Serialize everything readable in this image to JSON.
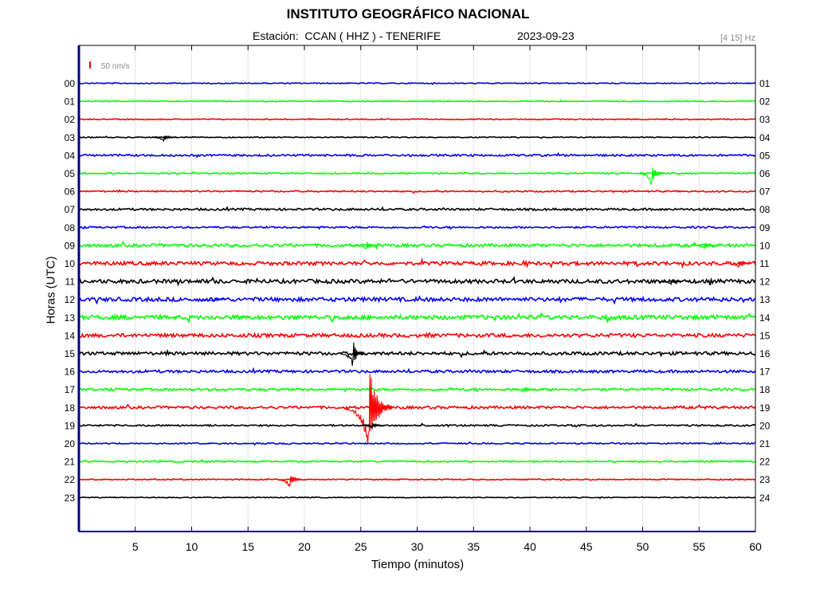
{
  "header": {
    "title": "INSTITUTO GEOGRÁFICO NACIONAL",
    "station_label": "Estación:  CCAN ( HHZ ) - TENERIFE",
    "date": "2023-09-23",
    "filter_band": "[4 15] Hz"
  },
  "chart_data": {
    "type": "line",
    "title": "INSTITUTO GEOGRÁFICO NACIONAL",
    "xlabel": "Tiempo (minutos)",
    "ylabel": "Horas (UTC)",
    "xlim": [
      0,
      60
    ],
    "xticks": [
      5,
      10,
      15,
      20,
      25,
      30,
      35,
      40,
      45,
      50,
      55,
      60
    ],
    "grid": "vertical",
    "scale_bar_label": "50 nm/s",
    "scale_bar_color": "#ff0000",
    "trace_colors": [
      "#0000ff",
      "#00ff00",
      "#ff0000",
      "#000000"
    ],
    "left_hours": [
      "00",
      "01",
      "02",
      "03",
      "04",
      "05",
      "06",
      "07",
      "08",
      "09",
      "10",
      "11",
      "12",
      "13",
      "14",
      "15",
      "16",
      "17",
      "18",
      "19",
      "20",
      "21",
      "22",
      "23"
    ],
    "right_hours": [
      "01",
      "02",
      "03",
      "04",
      "05",
      "06",
      "07",
      "08",
      "09",
      "10",
      "11",
      "12",
      "13",
      "14",
      "15",
      "16",
      "17",
      "18",
      "19",
      "20",
      "21",
      "22",
      "23",
      "24"
    ],
    "noise_level": [
      0.6,
      0.6,
      0.6,
      0.6,
      1.2,
      0.8,
      0.9,
      1.3,
      1.1,
      1.8,
      2.2,
      2.4,
      2.4,
      2.6,
      2.2,
      2.0,
      1.6,
      1.4,
      1.6,
      1.0,
      0.8,
      0.9,
      0.7,
      0.5
    ],
    "events": [
      {
        "hour": "03",
        "minute": 7.5,
        "amplitude": 5
      },
      {
        "hour": "05",
        "minute": 50.8,
        "amplitude": 16
      },
      {
        "hour": "09",
        "minute": 25.5,
        "amplitude": 6
      },
      {
        "hour": "09",
        "minute": 55.5,
        "amplitude": 5
      },
      {
        "hour": "10",
        "minute": 58.5,
        "amplitude": 6
      },
      {
        "hour": "11",
        "minute": 52.5,
        "amplitude": 5
      },
      {
        "hour": "12",
        "minute": 12.0,
        "amplitude": 4
      },
      {
        "hour": "15",
        "minute": 24.3,
        "amplitude": 18
      },
      {
        "hour": "17",
        "minute": 39.5,
        "amplitude": 4
      },
      {
        "hour": "18",
        "minute": 25.7,
        "amplitude": 57
      },
      {
        "hour": "19",
        "minute": 26.0,
        "amplitude": 4
      },
      {
        "hour": "22",
        "minute": 18.7,
        "amplitude": 12
      }
    ]
  }
}
